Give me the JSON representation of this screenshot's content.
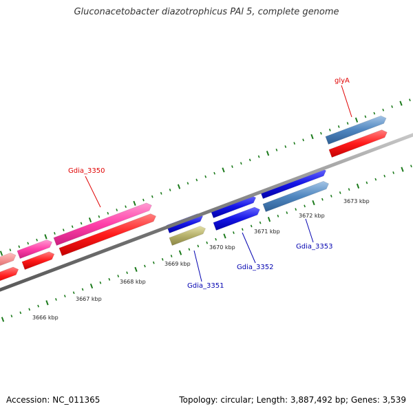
{
  "title": "Gluconacetobacter diazotrophicus PAl 5, complete genome",
  "footer": {
    "accession": "Accession: NC_011365",
    "summary": "Topology: circular; Length: 3,887,492 bp; Genes: 3,539"
  },
  "colors": {
    "backbone": "#8a8a8a",
    "tick": "#1b7a1b",
    "cds_red": "#ff1a1a",
    "cds_pink": "#ff3fa9",
    "cds_salmon": "#f08a8a",
    "cds_blue": "#1515e6",
    "cds_steel": "#4f86bf",
    "cds_olive": "#b5b06a",
    "label_red": "#e00000",
    "label_blue": "#0000b0"
  },
  "scale_labels": [
    "3666 kbp",
    "3667 kbp",
    "3668 kbp",
    "3669 kbp",
    "3670 kbp",
    "3671 kbp",
    "3672 kbp",
    "3673 kbp"
  ],
  "gene_labels": {
    "gdia_3350": "Gdia_3350",
    "glyA": "glyA",
    "gdia_3351": "Gdia_3351",
    "gdia_3352": "Gdia_3352",
    "gdia_3353": "Gdia_3353"
  }
}
